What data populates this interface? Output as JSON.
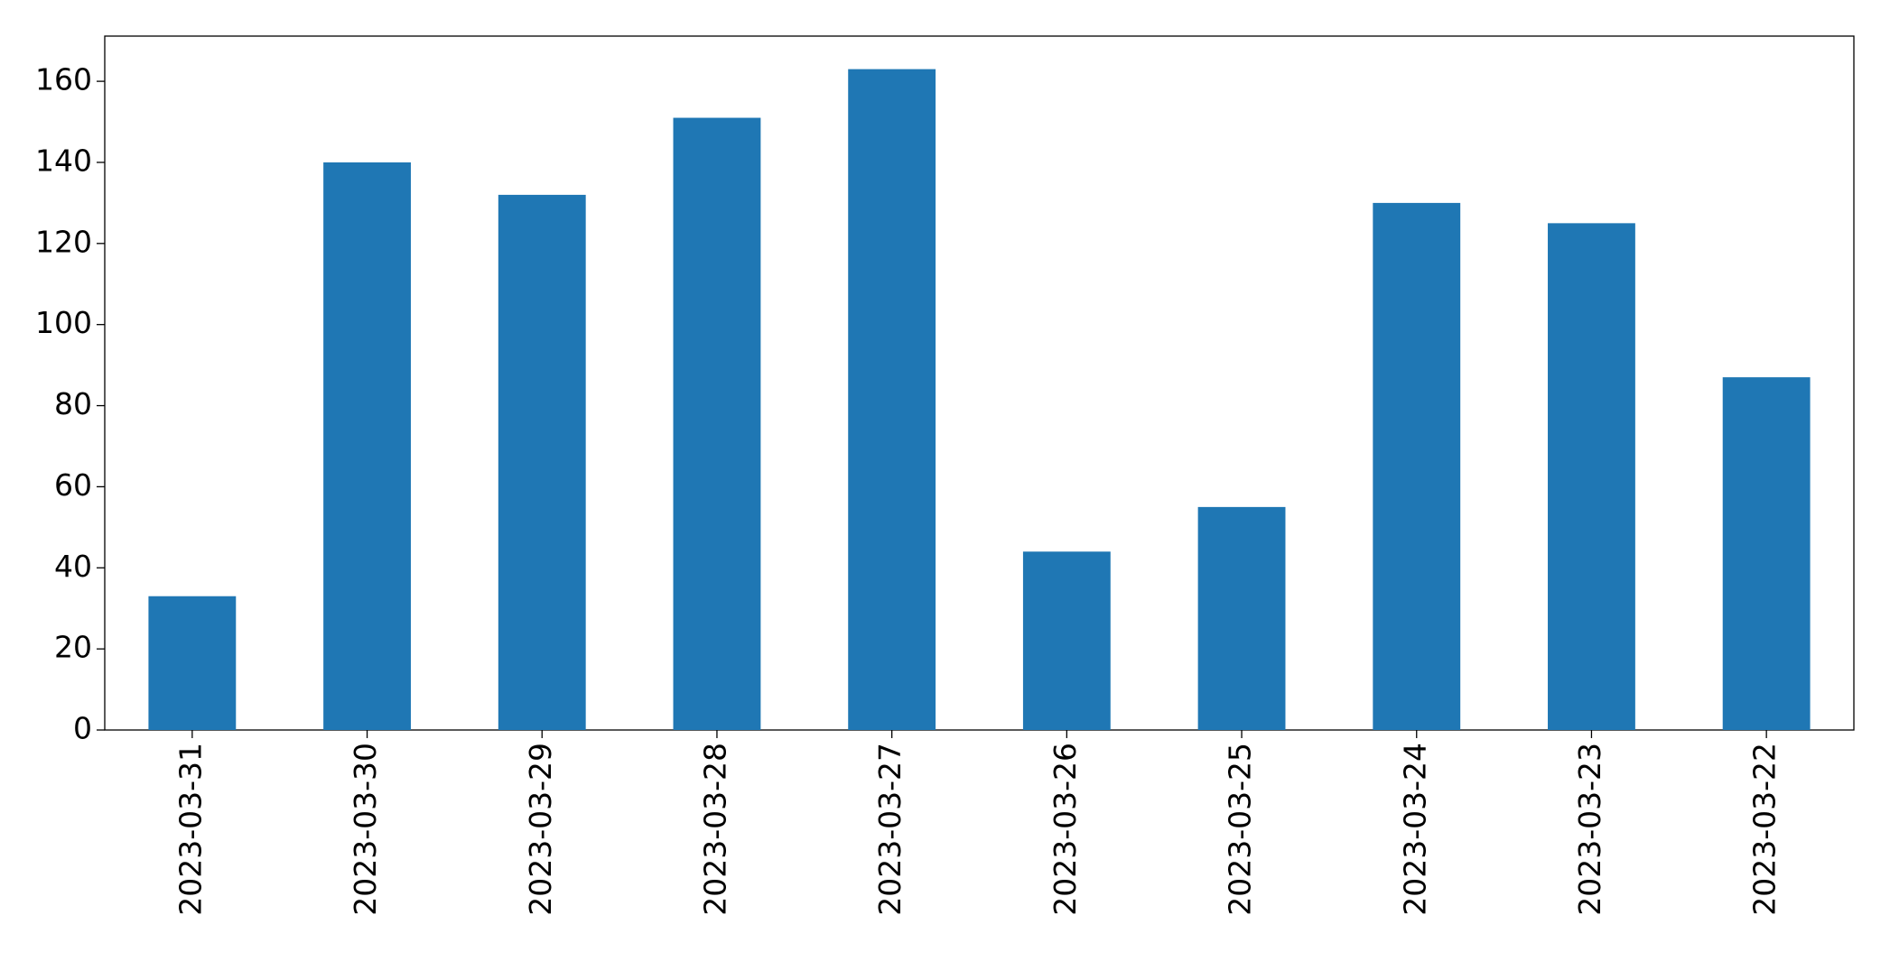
{
  "chart_data": {
    "type": "bar",
    "categories": [
      "2023-03-31",
      "2023-03-30",
      "2023-03-29",
      "2023-03-28",
      "2023-03-27",
      "2023-03-26",
      "2023-03-25",
      "2023-03-24",
      "2023-03-23",
      "2023-03-22"
    ],
    "values": [
      33,
      140,
      132,
      151,
      163,
      44,
      55,
      130,
      125,
      87
    ],
    "color": "#1f77b4",
    "ylim": [
      0,
      171.15
    ],
    "yticks": [
      0,
      20,
      40,
      60,
      80,
      100,
      120,
      140,
      160
    ],
    "grid": false
  }
}
